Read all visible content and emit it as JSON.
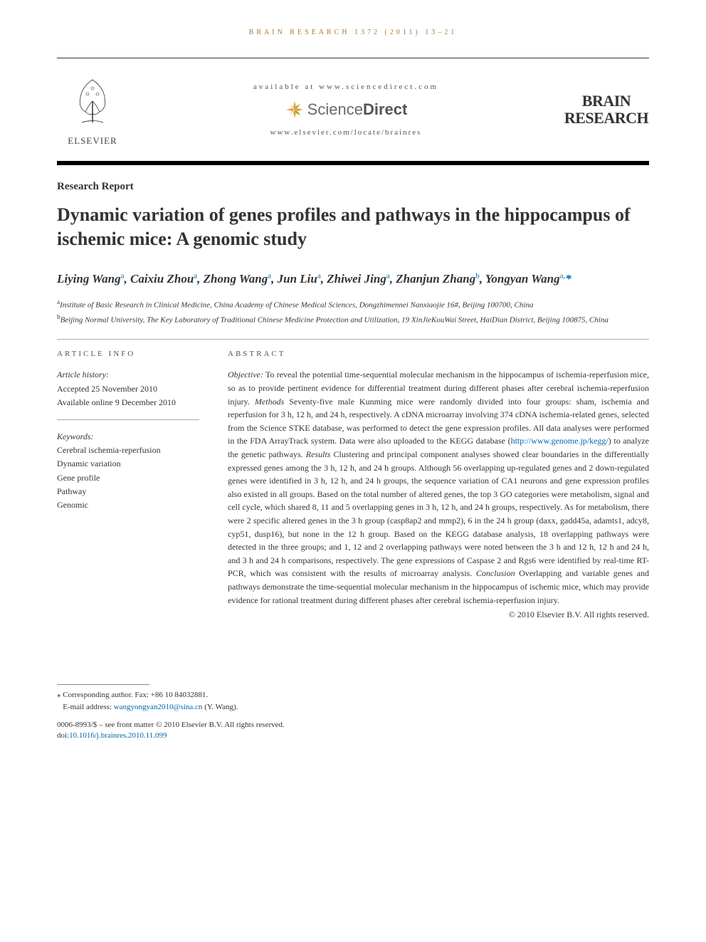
{
  "running_head": "BRAIN RESEARCH 1372 (2011) 13–21",
  "header": {
    "available_at": "available at www.sciencedirect.com",
    "sd_name_light": "Science",
    "sd_name_bold": "Direct",
    "locate": "www.elsevier.com/locate/brainres",
    "elsevier": "ELSEVIER",
    "journal_line1": "BRAIN",
    "journal_line2": "RESEARCH"
  },
  "section_type": "Research Report",
  "title": "Dynamic variation of genes profiles and pathways in the hippocampus of ischemic mice: A genomic study",
  "authors_html": "Liying Wang<sup>a</sup>, Caixiu Zhou<sup>a</sup>, Zhong Wang<sup>a</sup>, Jun Liu<sup>a</sup>, Zhiwei Jing<sup>a</sup>, Zhanjun Zhang<sup>b</sup>, Yongyan Wang<sup>a,</sup><span class=\"star\">*</span>",
  "affiliations": [
    "<sup>a</sup>Institute of Basic Research in Clinical Medicine, China Academy of Chinese Medical Sciences, Dongzhimennei Nanxiaojie 16#, Beijing 100700, China",
    "<sup>b</sup>Beijing Normal University, The Key Laboratory of Traditional Chinese Medicine Protection and Utilization, 19 XinJieKouWai Street, HaiDian District, Beijing 100875, China"
  ],
  "article_info": {
    "head": "ARTICLE INFO",
    "history_label": "Article history:",
    "accepted": "Accepted 25 November 2010",
    "online": "Available online 9 December 2010",
    "keywords_label": "Keywords:",
    "keywords": [
      "Cerebral ischemia-reperfusion",
      "Dynamic variation",
      "Gene profile",
      "Pathway",
      "Genomic"
    ]
  },
  "abstract": {
    "head": "ABSTRACT",
    "body": "<i>Objective:</i> To reveal the potential time-sequential molecular mechanism in the hippocampus of ischemia-reperfusion mice, so as to provide pertinent evidence for differential treatment during different phases after cerebral ischemia-reperfusion injury. <i>Methods</i> Seventy-five male Kunming mice were randomly divided into four groups: sham, ischemia and reperfusion for 3 h, 12 h, and 24 h, respectively. A cDNA microarray involving 374 cDNA ischemia-related genes, selected from the Science STKE database, was performed to detect the gene expression profiles. All data analyses were performed in the FDA ArrayTrack system. Data were also uploaded to the KEGG database (<span class=\"kegg\">http://www.genome.jp/kegg/</span>) to analyze the genetic pathways. <i>Results</i> Clustering and principal component analyses showed clear boundaries in the differentially expressed genes among the 3 h, 12 h, and 24 h groups. Although 56 overlapping up-regulated genes and 2 down-regulated genes were identified in 3 h, 12 h, and 24 h groups, the sequence variation of CA1 neurons and gene expression profiles also existed in all groups. Based on the total number of altered genes, the top 3 GO categories were metabolism, signal and cell cycle, which shared 8, 11 and 5 overlapping genes in 3 h, 12 h, and 24 h groups, respectively. As for metabolism, there were 2 specific altered genes in the 3 h group (casp8ap2 and mmp2), 6 in the 24 h group (daxx, gadd45a, adamts1, adcy8, cyp51, dusp16), but none in the 12 h group. Based on the KEGG database analysis, 18 overlapping pathways were detected in the three groups; and 1, 12 and 2 overlapping pathways were noted between the 3 h and 12 h, 12 h and 24 h, and 3 h and 24 h comparisons, respectively. The gene expressions of Caspase 2 and Rgs6 were identified by real-time RT-PCR, which was consistent with the results of microarray analysis. <i>Conclusion</i> Overlapping and variable genes and pathways demonstrate the time-sequential molecular mechanism in the hippocampus of ischemic mice, which may provide evidence for rational treatment during different phases after cerebral ischemia-reperfusion injury.",
    "copyright": "© 2010 Elsevier B.V. All rights reserved."
  },
  "corresponding": {
    "line1": "* Corresponding author. Fax: +86 10 84032881.",
    "email_label": "E-mail address: ",
    "email": "wangyongyan2010@sina.cn",
    "email_suffix": " (Y. Wang)."
  },
  "bottom": {
    "line1": "0006-8993/$ – see front matter © 2010 Elsevier B.V. All rights reserved.",
    "doi_prefix": "doi:",
    "doi": "10.1016/j.brainres.2010.11.099"
  }
}
